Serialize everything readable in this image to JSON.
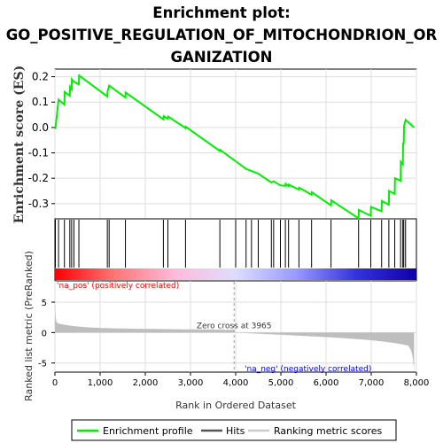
{
  "title_lines": [
    "Enrichment plot:",
    "GO_POSITIVE_REGULATION_OF_MITOCHONDRION_OR",
    "GANIZATION"
  ],
  "chart_data": {
    "type": "line",
    "x_label": "Rank in Ordered Dataset",
    "es_axis_label": "Enrichment score (ES)",
    "metric_axis_label": "Ranked list metric (PreRanked)",
    "x_range": [
      0,
      8000
    ],
    "es_range": [
      -0.36,
      0.23
    ],
    "metric_range": [
      -6.5,
      8.5
    ],
    "x_ticks": [
      "0",
      "1,000",
      "2,000",
      "3,000",
      "4,000",
      "5,000",
      "6,000",
      "7,000",
      "8,000"
    ],
    "x_tick_values": [
      0,
      1000,
      2000,
      3000,
      4000,
      5000,
      6000,
      7000,
      8000
    ],
    "es_ticks": [
      "0.2",
      "0.1",
      "0.0",
      "-0.1",
      "-0.2",
      "-0.3"
    ],
    "es_tick_values": [
      0.2,
      0.1,
      0.0,
      -0.1,
      -0.2,
      -0.3
    ],
    "metric_ticks": [
      "5",
      "0",
      "-5"
    ],
    "metric_tick_values": [
      5,
      0,
      -5
    ],
    "zero_cross_label": "Zero cross at 3965",
    "zero_cross": 3965,
    "pos_label": "'na_pos' (positively correlated)",
    "neg_label": "'na_neg' (negatively correlated)",
    "total_ranks": 7950,
    "hits": [
      10,
      80,
      210,
      330,
      370,
      420,
      530,
      1160,
      1200,
      1560,
      2400,
      2500,
      2890,
      3650,
      4000,
      4230,
      4350,
      4500,
      4790,
      4840,
      4990,
      5100,
      5170,
      5400,
      5680,
      6110,
      6720,
      6990,
      7230,
      7390,
      7520,
      7650,
      7700,
      7720,
      7760
    ],
    "es_points": [
      [
        0,
        0.0
      ],
      [
        10,
        -0.005
      ],
      [
        80,
        0.11
      ],
      [
        210,
        0.09
      ],
      [
        215,
        0.14
      ],
      [
        330,
        0.125
      ],
      [
        335,
        0.16
      ],
      [
        370,
        0.15
      ],
      [
        375,
        0.19
      ],
      [
        420,
        0.18
      ],
      [
        530,
        0.17
      ],
      [
        535,
        0.205
      ],
      [
        1160,
        0.122
      ],
      [
        1165,
        0.142
      ],
      [
        1200,
        0.165
      ],
      [
        1560,
        0.118
      ],
      [
        1565,
        0.138
      ],
      [
        2400,
        0.032
      ],
      [
        2405,
        0.045
      ],
      [
        2500,
        0.034
      ],
      [
        2505,
        0.043
      ],
      [
        2890,
        -0.002
      ],
      [
        2895,
        0.003
      ],
      [
        3650,
        -0.093
      ],
      [
        3655,
        -0.088
      ],
      [
        4000,
        -0.133
      ],
      [
        4230,
        -0.163
      ],
      [
        4500,
        -0.182
      ],
      [
        4790,
        -0.217
      ],
      [
        4840,
        -0.212
      ],
      [
        4990,
        -0.228
      ],
      [
        5100,
        -0.23
      ],
      [
        5105,
        -0.222
      ],
      [
        5170,
        -0.232
      ],
      [
        5175,
        -0.225
      ],
      [
        5400,
        -0.245
      ],
      [
        5405,
        -0.237
      ],
      [
        5680,
        -0.265
      ],
      [
        5685,
        -0.255
      ],
      [
        6110,
        -0.307
      ],
      [
        6115,
        -0.287
      ],
      [
        6720,
        -0.358
      ],
      [
        6725,
        -0.325
      ],
      [
        6990,
        -0.348
      ],
      [
        6995,
        -0.313
      ],
      [
        7230,
        -0.33
      ],
      [
        7235,
        -0.29
      ],
      [
        7390,
        -0.304
      ],
      [
        7395,
        -0.25
      ],
      [
        7520,
        -0.262
      ],
      [
        7525,
        -0.2
      ],
      [
        7650,
        -0.21
      ],
      [
        7655,
        -0.135
      ],
      [
        7700,
        -0.145
      ],
      [
        7705,
        -0.06
      ],
      [
        7720,
        -0.065
      ],
      [
        7725,
        0.005
      ],
      [
        7760,
        0.03
      ],
      [
        7950,
        0.0
      ]
    ],
    "legend": [
      "Enrichment profile",
      "Hits",
      "Ranking metric scores"
    ],
    "colors": {
      "enrichment": "#00ee00",
      "hits": "#000000",
      "metric": "#bebebe",
      "pos_label": "#ff0000",
      "neg_label": "#0000ff",
      "gradient_stops": [
        "#ff0000",
        "#ff7777",
        "#ffbbdd",
        "#ddddff",
        "#9999ff",
        "#3333dd",
        "#1100aa"
      ]
    }
  }
}
